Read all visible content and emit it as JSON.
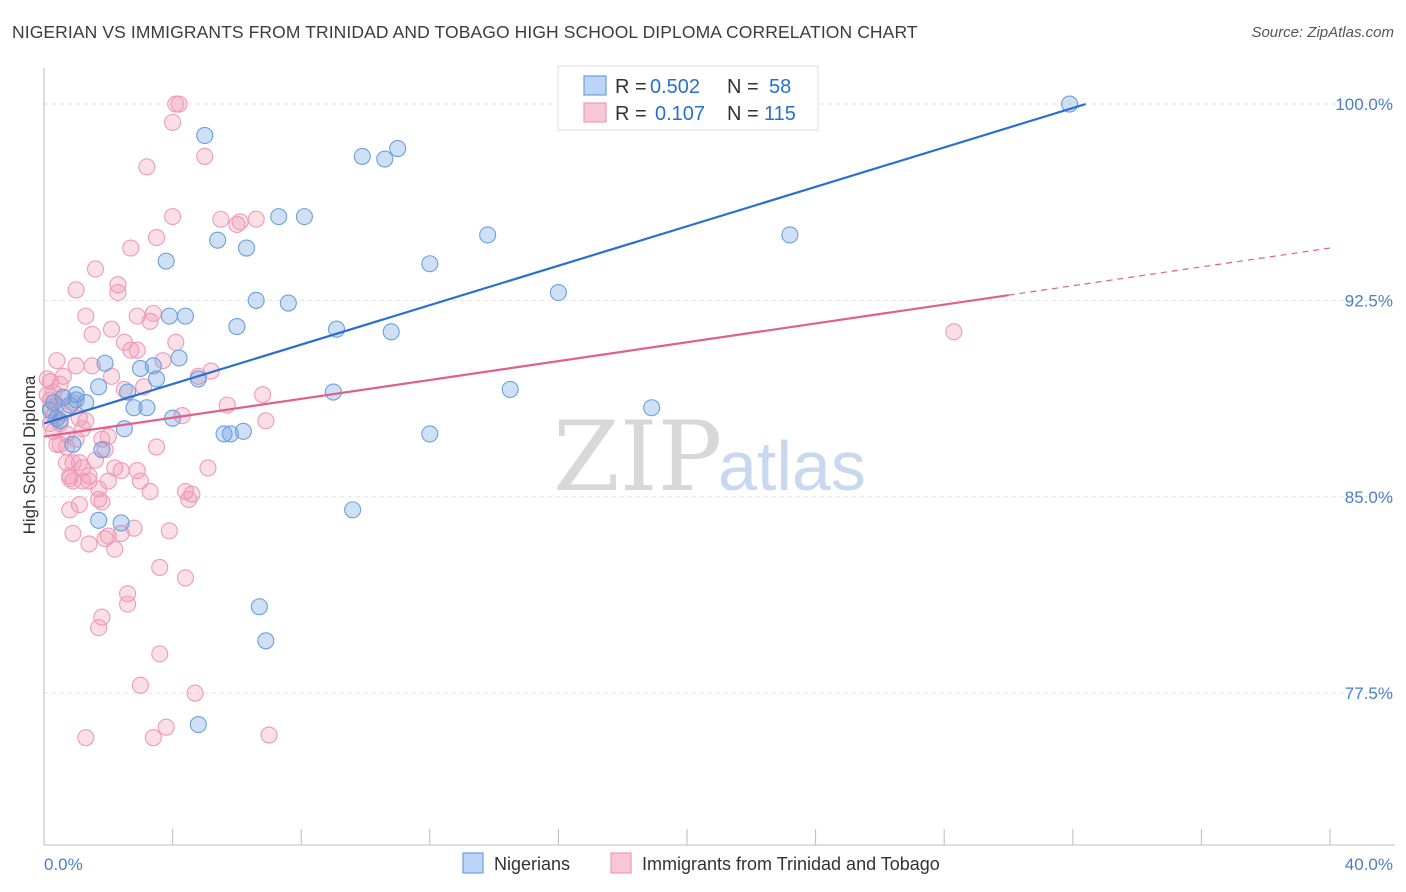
{
  "title": "NIGERIAN VS IMMIGRANTS FROM TRINIDAD AND TOBAGO HIGH SCHOOL DIPLOMA CORRELATION CHART",
  "source": "Source: ZipAtlas.com",
  "watermark": {
    "zip": "ZIP",
    "atlas": "atlas"
  },
  "legend_box": {
    "rows": [
      {
        "r_label": "R =",
        "r_value": "0.502",
        "n_label": "N =",
        "n_value": "58"
      },
      {
        "r_label": "R =",
        "r_value": "0.107",
        "n_label": "N =",
        "n_value": "115"
      }
    ]
  },
  "chart_data": {
    "type": "scatter",
    "xlabel": "",
    "ylabel": "High School Diploma",
    "x_tick_labels": [
      "0.0%",
      "40.0%"
    ],
    "y_tick_labels": [
      "100.0%",
      "92.5%",
      "85.0%",
      "77.5%"
    ],
    "y_ticks": [
      100.0,
      92.5,
      85.0,
      77.5
    ],
    "xlim": [
      0,
      40
    ],
    "ylim": [
      71.7,
      101.3
    ],
    "grid": true,
    "legend_position": "top-center",
    "colors": {
      "nigerians": "#6a9fe0",
      "trinidad": "#f09ab5",
      "nig_line": "#2a6fcf",
      "tt_line": "#e0608a"
    },
    "series": [
      {
        "name": "Nigerians",
        "r": 0.502,
        "n": 58,
        "trend": {
          "x0": 0,
          "y0": 87.8,
          "x1": 32.4,
          "y1": 100.0
        },
        "points": [
          [
            0.2,
            88.3
          ],
          [
            0.3,
            88.6
          ],
          [
            0.4,
            88.0
          ],
          [
            0.6,
            88.8
          ],
          [
            0.8,
            88.5
          ],
          [
            0.9,
            87.0
          ],
          [
            1.0,
            88.9
          ],
          [
            1.3,
            88.6
          ],
          [
            1.7,
            89.2
          ],
          [
            1.8,
            86.8
          ],
          [
            1.9,
            90.1
          ],
          [
            2.5,
            87.6
          ],
          [
            2.6,
            89.0
          ],
          [
            2.8,
            88.4
          ],
          [
            3.0,
            89.9
          ],
          [
            3.2,
            88.4
          ],
          [
            3.4,
            90.0
          ],
          [
            3.5,
            89.5
          ],
          [
            3.8,
            94.0
          ],
          [
            3.9,
            91.9
          ],
          [
            4.0,
            88.0
          ],
          [
            4.2,
            90.3
          ],
          [
            4.4,
            91.9
          ],
          [
            4.8,
            89.5
          ],
          [
            5.0,
            98.8
          ],
          [
            5.4,
            94.8
          ],
          [
            5.6,
            87.4
          ],
          [
            5.8,
            87.4
          ],
          [
            6.0,
            91.5
          ],
          [
            6.2,
            87.5
          ],
          [
            6.3,
            94.5
          ],
          [
            6.6,
            92.5
          ],
          [
            6.7,
            80.8
          ],
          [
            6.9,
            79.5
          ],
          [
            7.3,
            95.7
          ],
          [
            7.6,
            92.4
          ],
          [
            8.1,
            95.7
          ],
          [
            9.1,
            91.4
          ],
          [
            9.0,
            89.0
          ],
          [
            9.6,
            84.5
          ],
          [
            9.9,
            98.0
          ],
          [
            10.6,
            97.9
          ],
          [
            11.0,
            98.3
          ],
          [
            10.8,
            91.3
          ],
          [
            12.0,
            87.4
          ],
          [
            12.0,
            93.9
          ],
          [
            13.8,
            95.0
          ],
          [
            14.5,
            89.1
          ],
          [
            16.0,
            92.8
          ],
          [
            17.0,
            100.0
          ],
          [
            18.9,
            88.4
          ],
          [
            23.2,
            95.0
          ],
          [
            31.9,
            100.0
          ],
          [
            2.4,
            84.0
          ],
          [
            1.7,
            84.1
          ],
          [
            4.8,
            76.3
          ],
          [
            1.0,
            88.7
          ],
          [
            0.5,
            87.9
          ]
        ]
      },
      {
        "name": "Immigrants from Trinidad and Tobago",
        "r": 0.107,
        "n": 115,
        "trend": {
          "x0": 0,
          "y0": 87.3,
          "x1": 30.0,
          "y1": 92.7
        },
        "trend_ext": {
          "x0": 30.0,
          "y0": 92.7,
          "x1": 40.0,
          "y1": 94.5
        },
        "points": [
          [
            0.1,
            89.5
          ],
          [
            0.1,
            88.9
          ],
          [
            0.2,
            88.4
          ],
          [
            0.2,
            87.8
          ],
          [
            0.3,
            87.5
          ],
          [
            0.3,
            89.0
          ],
          [
            0.4,
            90.2
          ],
          [
            0.4,
            88.5
          ],
          [
            0.5,
            87.8
          ],
          [
            0.5,
            89.3
          ],
          [
            0.5,
            87.0
          ],
          [
            0.6,
            88.2
          ],
          [
            0.6,
            89.6
          ],
          [
            0.7,
            87.4
          ],
          [
            0.7,
            86.3
          ],
          [
            0.8,
            85.7
          ],
          [
            0.8,
            84.5
          ],
          [
            0.9,
            83.6
          ],
          [
            0.9,
            85.6
          ],
          [
            0.9,
            88.6
          ],
          [
            1.0,
            90.0
          ],
          [
            1.0,
            92.9
          ],
          [
            1.0,
            87.2
          ],
          [
            1.1,
            88.0
          ],
          [
            1.1,
            84.7
          ],
          [
            1.2,
            85.6
          ],
          [
            1.2,
            87.6
          ],
          [
            1.3,
            87.9
          ],
          [
            1.3,
            91.9
          ],
          [
            1.3,
            75.8
          ],
          [
            1.4,
            85.6
          ],
          [
            1.4,
            83.2
          ],
          [
            1.5,
            90.0
          ],
          [
            1.5,
            91.2
          ],
          [
            1.6,
            93.7
          ],
          [
            1.7,
            85.3
          ],
          [
            1.7,
            80.0
          ],
          [
            1.8,
            87.2
          ],
          [
            1.8,
            84.8
          ],
          [
            1.8,
            80.4
          ],
          [
            1.9,
            83.4
          ],
          [
            2.0,
            85.6
          ],
          [
            2.0,
            83.5
          ],
          [
            2.1,
            89.6
          ],
          [
            2.1,
            91.4
          ],
          [
            2.2,
            83.0
          ],
          [
            2.3,
            93.1
          ],
          [
            2.3,
            92.8
          ],
          [
            2.4,
            83.6
          ],
          [
            2.5,
            89.1
          ],
          [
            2.5,
            90.9
          ],
          [
            2.6,
            81.3
          ],
          [
            2.6,
            80.9
          ],
          [
            2.7,
            94.5
          ],
          [
            2.8,
            83.8
          ],
          [
            2.9,
            86.0
          ],
          [
            2.9,
            91.9
          ],
          [
            3.0,
            85.6
          ],
          [
            3.1,
            89.2
          ],
          [
            3.2,
            97.6
          ],
          [
            3.3,
            85.2
          ],
          [
            3.3,
            91.7
          ],
          [
            3.4,
            92.0
          ],
          [
            3.5,
            86.9
          ],
          [
            3.5,
            94.9
          ],
          [
            3.6,
            82.3
          ],
          [
            3.6,
            79.0
          ],
          [
            3.7,
            90.2
          ],
          [
            3.8,
            76.2
          ],
          [
            4.0,
            95.7
          ],
          [
            4.0,
            99.3
          ],
          [
            4.1,
            90.9
          ],
          [
            4.2,
            100.0
          ],
          [
            4.3,
            88.1
          ],
          [
            4.4,
            81.9
          ],
          [
            4.5,
            84.9
          ],
          [
            4.6,
            85.1
          ],
          [
            4.7,
            77.5
          ],
          [
            4.8,
            89.6
          ],
          [
            5.0,
            98.0
          ],
          [
            5.1,
            86.1
          ],
          [
            5.5,
            95.6
          ],
          [
            5.7,
            88.5
          ],
          [
            6.0,
            95.4
          ],
          [
            6.1,
            95.5
          ],
          [
            6.6,
            95.6
          ],
          [
            6.8,
            88.9
          ],
          [
            6.9,
            87.9
          ],
          [
            7.0,
            75.9
          ],
          [
            28.3,
            91.3
          ],
          [
            4.1,
            100.0
          ],
          [
            3.0,
            77.8
          ],
          [
            2.2,
            86.1
          ],
          [
            2.0,
            87.3
          ],
          [
            1.9,
            86.8
          ],
          [
            1.6,
            86.4
          ],
          [
            1.4,
            85.8
          ],
          [
            1.1,
            86.3
          ],
          [
            0.9,
            86.3
          ],
          [
            0.7,
            86.9
          ],
          [
            0.6,
            88.8
          ],
          [
            0.4,
            87.0
          ],
          [
            0.3,
            88.1
          ],
          [
            0.2,
            88.7
          ],
          [
            0.2,
            89.4
          ],
          [
            1.2,
            86.1
          ],
          [
            3.9,
            83.7
          ],
          [
            2.7,
            90.6
          ],
          [
            4.4,
            85.2
          ],
          [
            5.2,
            89.8
          ],
          [
            1.7,
            84.9
          ],
          [
            0.8,
            85.8
          ],
          [
            2.4,
            86.0
          ],
          [
            3.4,
            75.8
          ],
          [
            2.9,
            90.6
          ]
        ]
      }
    ]
  },
  "bottom_legend": [
    {
      "label": "Nigerians"
    },
    {
      "label": "Immigrants from Trinidad and Tobago"
    }
  ]
}
